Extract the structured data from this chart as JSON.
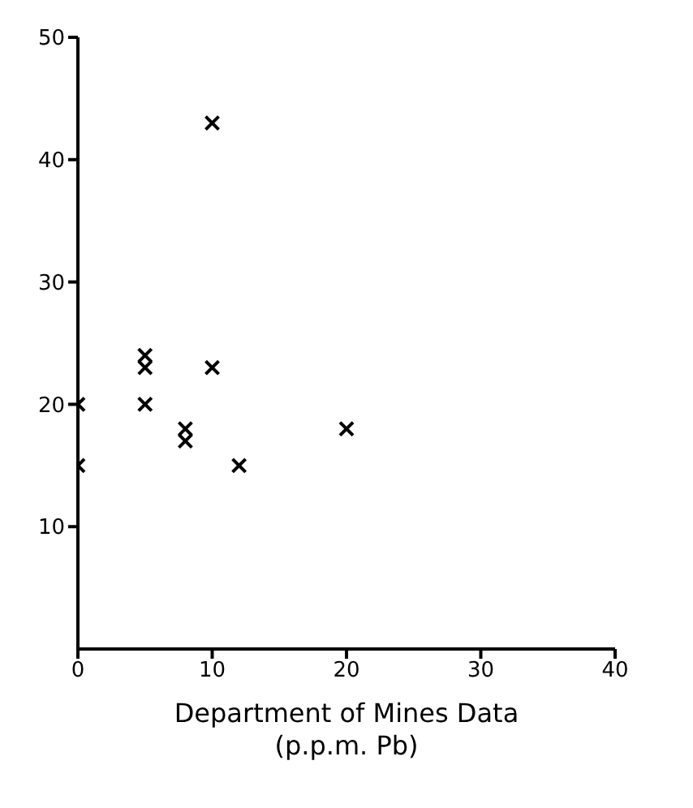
{
  "chart_data": {
    "type": "scatter",
    "xlabel": "Department of Mines Data\n(p.p.m. Pb)",
    "x": [
      0,
      0,
      5,
      5,
      5,
      10,
      10,
      8,
      8,
      12,
      20
    ],
    "series": [
      {
        "color": "#000000",
        "values": [
          20,
          15,
          24,
          23,
          20,
          43,
          23,
          18,
          17,
          15,
          18
        ]
      }
    ],
    "xlim": [
      0,
      40
    ],
    "xticks": [
      0,
      10,
      20,
      30,
      40
    ],
    "ylim": [
      0,
      50
    ],
    "yticks": [
      10,
      20,
      30,
      40,
      50
    ],
    "marker": "cross",
    "grid": false,
    "legend": false
  }
}
